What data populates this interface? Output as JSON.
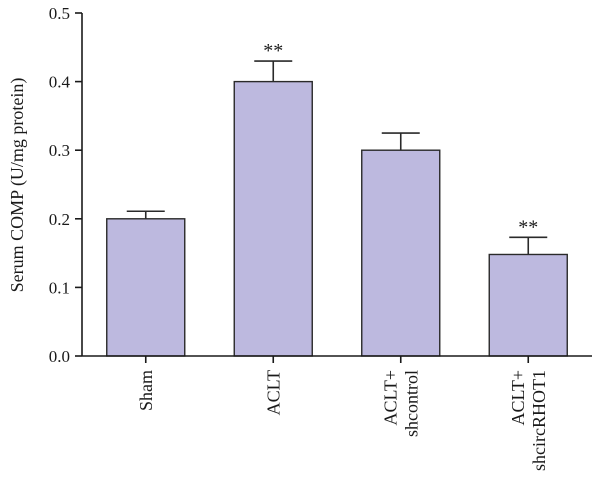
{
  "chart_data": {
    "type": "bar",
    "ylabel": "Serum COMP (U/mg protein)",
    "xlabel": "",
    "ylim": [
      0,
      0.5
    ],
    "yticks": [
      0.0,
      0.1,
      0.2,
      0.3,
      0.4,
      0.5
    ],
    "ytick_labels": [
      "0.0",
      "0.1",
      "0.2",
      "0.3",
      "0.4",
      "0.5"
    ],
    "bar_color": "#bdb9df",
    "categories": [
      {
        "label_lines": [
          "Sham"
        ],
        "value": 0.2,
        "error": 0.011,
        "significance": ""
      },
      {
        "label_lines": [
          "ACLT"
        ],
        "value": 0.4,
        "error": 0.03,
        "significance": "**"
      },
      {
        "label_lines": [
          "ACLT+",
          "shcontrol"
        ],
        "value": 0.3,
        "error": 0.025,
        "significance": ""
      },
      {
        "label_lines": [
          "ACLT+",
          "shcircRHOT1"
        ],
        "value": 0.148,
        "error": 0.025,
        "significance": "**"
      }
    ]
  }
}
